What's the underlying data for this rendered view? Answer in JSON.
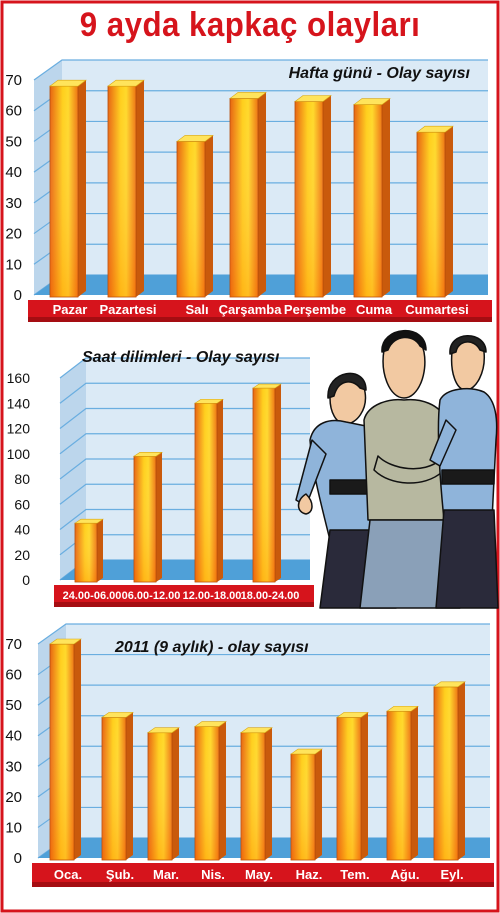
{
  "title": "9 ayda kapkaç olayları",
  "colors": {
    "border": "#d6141c",
    "panel_face": "#dbeaf6",
    "panel_side": "#bcd6ec",
    "floor": "#4fa0d8",
    "floor_dark": "#2f7fb9",
    "grid": "#6aaee0",
    "red_strip": "#d6141c",
    "bar_front": "#f07c16",
    "bar_light": "#ffd21e",
    "bar_top": "#ffe45c",
    "bar_side": "#c95a0c"
  },
  "chart_data": [
    {
      "type": "bar",
      "title": "Hafta günü - Olay sayısı",
      "categories": [
        "Pazar",
        "Pazartesi",
        "Salı",
        "Çarşamba",
        "Perşembe",
        "Cuma",
        "Cumartesi"
      ],
      "values": [
        68,
        68,
        50,
        64,
        63,
        62,
        53
      ],
      "yticks": [
        "0",
        "10",
        "20",
        "30",
        "40",
        "50",
        "60",
        "70"
      ],
      "ylim": [
        0,
        70
      ],
      "grid": true
    },
    {
      "type": "bar",
      "title": "Saat dilimleri - Olay sayısı",
      "categories": [
        "24.00-06.00",
        "06.00-12.00",
        "12.00-18.00",
        "18.00-24.00"
      ],
      "values": [
        45,
        98,
        140,
        152
      ],
      "yticks": [
        "0",
        "20",
        "40",
        "60",
        "80",
        "100",
        "120",
        "140",
        "160"
      ],
      "ylim": [
        0,
        160
      ],
      "grid": true
    },
    {
      "type": "bar",
      "title": "2011 (9 aylık) - olay sayısı",
      "categories": [
        "Oca.",
        "Şub.",
        "Mar.",
        "Nis.",
        "May.",
        "Haz.",
        "Tem.",
        "Ağu.",
        "Eyl."
      ],
      "values": [
        70,
        46,
        41,
        43,
        41,
        34,
        46,
        48,
        56
      ],
      "yticks": [
        "0",
        "10",
        "20",
        "30",
        "40",
        "50",
        "60",
        "70"
      ],
      "ylim": [
        0,
        70
      ],
      "grid": true
    }
  ],
  "illustration": {
    "name": "police-officers-arresting-man-illustration"
  }
}
